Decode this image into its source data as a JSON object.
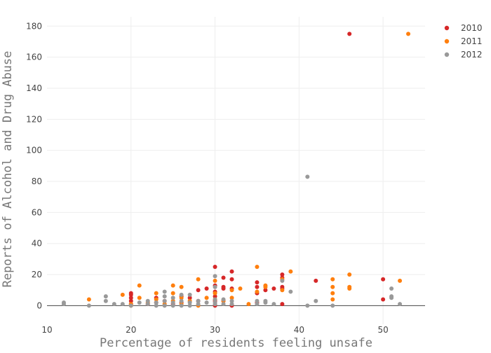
{
  "chart_data": {
    "type": "scatter",
    "title": "",
    "xlabel": "Percentage of residents feeling unsafe",
    "ylabel": "Reports of Alcohol and Drug Abuse",
    "xlim": [
      10,
      55
    ],
    "ylim": [
      -12,
      186
    ],
    "xticks": [
      10,
      20,
      30,
      40,
      50
    ],
    "yticks": [
      0,
      20,
      40,
      60,
      80,
      100,
      120,
      140,
      160,
      180
    ],
    "grid": true,
    "legend_position": "top-right",
    "series": [
      {
        "name": "2010",
        "color": "#d62728",
        "points": [
          [
            20,
            8
          ],
          [
            20,
            7
          ],
          [
            20,
            5
          ],
          [
            20,
            3
          ],
          [
            20,
            1
          ],
          [
            22,
            1
          ],
          [
            23,
            5
          ],
          [
            23,
            2
          ],
          [
            24,
            3
          ],
          [
            25,
            1
          ],
          [
            26,
            6
          ],
          [
            26,
            2
          ],
          [
            27,
            5
          ],
          [
            28,
            10
          ],
          [
            28,
            3
          ],
          [
            29,
            11
          ],
          [
            30,
            25
          ],
          [
            30,
            13
          ],
          [
            30,
            9
          ],
          [
            30,
            6
          ],
          [
            30,
            3
          ],
          [
            30,
            0
          ],
          [
            31,
            18
          ],
          [
            31,
            12
          ],
          [
            31,
            11
          ],
          [
            31,
            3
          ],
          [
            32,
            22
          ],
          [
            32,
            17
          ],
          [
            32,
            11
          ],
          [
            32,
            0
          ],
          [
            35,
            15
          ],
          [
            35,
            12
          ],
          [
            35,
            8
          ],
          [
            35,
            2
          ],
          [
            36,
            10
          ],
          [
            37,
            11
          ],
          [
            38,
            20
          ],
          [
            38,
            18
          ],
          [
            38,
            12
          ],
          [
            38,
            11
          ],
          [
            38,
            1
          ],
          [
            42,
            16
          ],
          [
            46,
            175
          ],
          [
            50,
            4
          ],
          [
            50,
            17
          ]
        ]
      },
      {
        "name": "2011",
        "color": "#ff7f0e",
        "points": [
          [
            15,
            4
          ],
          [
            19,
            7
          ],
          [
            20,
            1
          ],
          [
            20,
            0
          ],
          [
            21,
            13
          ],
          [
            21,
            5
          ],
          [
            22,
            2
          ],
          [
            23,
            8
          ],
          [
            23,
            4
          ],
          [
            24,
            1
          ],
          [
            25,
            13
          ],
          [
            25,
            8
          ],
          [
            25,
            3
          ],
          [
            26,
            12
          ],
          [
            26,
            5
          ],
          [
            26,
            1
          ],
          [
            27,
            3
          ],
          [
            28,
            17
          ],
          [
            28,
            0
          ],
          [
            29,
            5
          ],
          [
            30,
            16
          ],
          [
            30,
            8
          ],
          [
            30,
            4
          ],
          [
            31,
            3
          ],
          [
            32,
            10
          ],
          [
            32,
            5
          ],
          [
            33,
            11
          ],
          [
            34,
            1
          ],
          [
            35,
            25
          ],
          [
            35,
            9
          ],
          [
            36,
            13
          ],
          [
            36,
            12
          ],
          [
            38,
            17
          ],
          [
            38,
            10
          ],
          [
            39,
            22
          ],
          [
            44,
            17
          ],
          [
            44,
            12
          ],
          [
            44,
            8
          ],
          [
            44,
            4
          ],
          [
            46,
            20
          ],
          [
            46,
            12
          ],
          [
            46,
            11
          ],
          [
            52,
            16
          ],
          [
            53,
            175
          ]
        ]
      },
      {
        "name": "2012",
        "color": "#999999",
        "points": [
          [
            12,
            2
          ],
          [
            12,
            1
          ],
          [
            15,
            0
          ],
          [
            17,
            6
          ],
          [
            17,
            3
          ],
          [
            18,
            1
          ],
          [
            19,
            1
          ],
          [
            20,
            0
          ],
          [
            21,
            2
          ],
          [
            22,
            1
          ],
          [
            22,
            3
          ],
          [
            23,
            2
          ],
          [
            23,
            0
          ],
          [
            24,
            9
          ],
          [
            24,
            6
          ],
          [
            24,
            3
          ],
          [
            24,
            0
          ],
          [
            25,
            5
          ],
          [
            25,
            2
          ],
          [
            25,
            0
          ],
          [
            26,
            7
          ],
          [
            26,
            3
          ],
          [
            26,
            0
          ],
          [
            27,
            7
          ],
          [
            27,
            2
          ],
          [
            27,
            0
          ],
          [
            28,
            3
          ],
          [
            28,
            1
          ],
          [
            29,
            2
          ],
          [
            30,
            19
          ],
          [
            30,
            12
          ],
          [
            30,
            4
          ],
          [
            30,
            2
          ],
          [
            30,
            1
          ],
          [
            31,
            4
          ],
          [
            31,
            1
          ],
          [
            32,
            3
          ],
          [
            32,
            1
          ],
          [
            35,
            3
          ],
          [
            35,
            1
          ],
          [
            36,
            3
          ],
          [
            36,
            2
          ],
          [
            37,
            1
          ],
          [
            38,
            16
          ],
          [
            39,
            9
          ],
          [
            41,
            83
          ],
          [
            41,
            0
          ],
          [
            42,
            3
          ],
          [
            44,
            0
          ],
          [
            51,
            11
          ],
          [
            51,
            6
          ],
          [
            51,
            5
          ],
          [
            52,
            1
          ]
        ]
      }
    ]
  }
}
